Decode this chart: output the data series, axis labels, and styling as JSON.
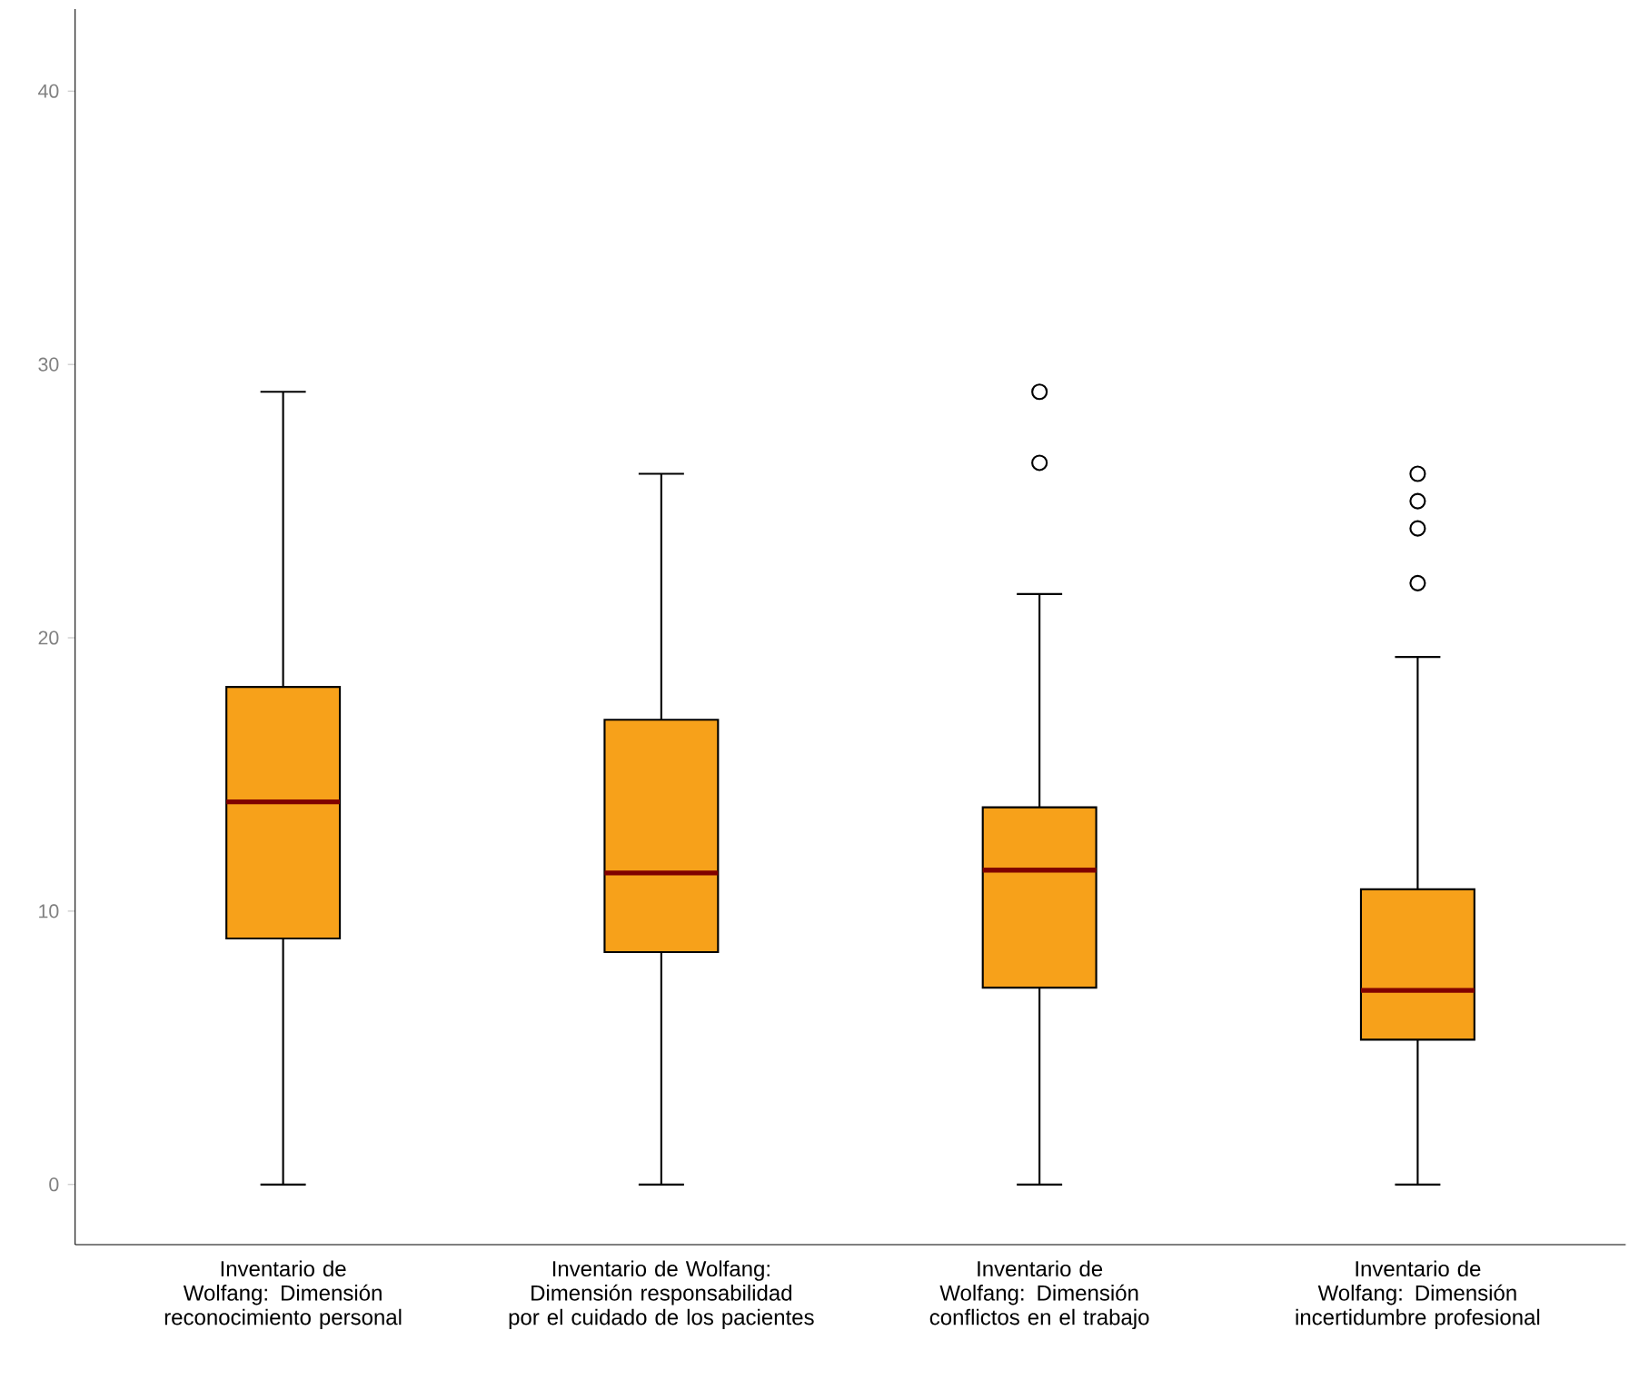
{
  "chart_data": {
    "type": "box",
    "categories": [
      "Inventario de Wolfang: Dimensión reconocimiento personal",
      "Inventario de Wolfang: Dimensión responsabilidad por el cuidado de los pacientes",
      "Inventario de Wolfang: Dimensión conflictos en el trabajo",
      "Inventario de Wolfang: Dimensión incertidumbre profesional"
    ],
    "boxes": [
      {
        "low": 0,
        "q1": 9,
        "median": 14,
        "q3": 18.2,
        "high": 29
      },
      {
        "low": 0,
        "q1": 8.5,
        "median": 11.4,
        "q3": 17,
        "high": 26
      },
      {
        "low": 0,
        "q1": 7.2,
        "median": 11.5,
        "q3": 13.8,
        "high": 21.6,
        "outliers": [
          29,
          26.4
        ]
      },
      {
        "low": 0,
        "q1": 5.3,
        "median": 7.1,
        "q3": 10.8,
        "high": 19.3,
        "outliers": [
          26,
          25,
          24,
          22
        ]
      }
    ],
    "color": "#f7a11a",
    "ylim": [
      -2.2,
      43
    ],
    "yticks": [
      0,
      10,
      20,
      30,
      40
    ],
    "grid": false
  }
}
